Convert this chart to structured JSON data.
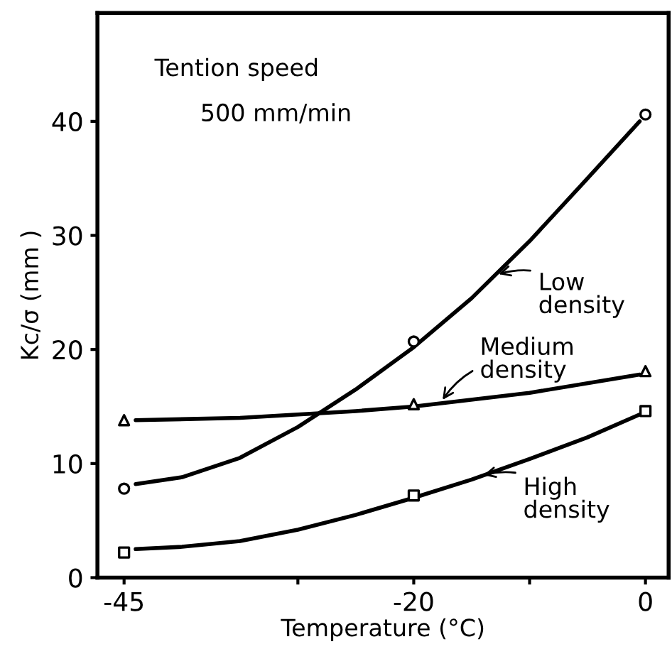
{
  "chart_data": {
    "type": "line",
    "xlabel": "Temperature (°C)",
    "ylabel": "Kc/σ (mm )",
    "series": [
      {
        "type": "scatter",
        "color": "#000000",
        "marker": "circle",
        "x": [
          -45,
          -20,
          0
        ],
        "values": [
          7.8,
          20.7,
          40.6
        ]
      },
      {
        "type": "scatter",
        "color": "#000000",
        "marker": "triangle",
        "x": [
          -45,
          -20,
          0
        ],
        "values": [
          13.8,
          15.2,
          18.1
        ]
      },
      {
        "type": "scatter",
        "color": "#000000",
        "marker": "square",
        "x": [
          -45,
          -20,
          0
        ],
        "values": [
          2.2,
          7.2,
          14.6
        ]
      },
      {
        "color": "#000000",
        "x": [
          -44,
          -40,
          -35,
          -30,
          -25,
          -20,
          -15,
          -10,
          -5,
          -0.5
        ],
        "values": [
          8.2,
          8.8,
          10.5,
          13.2,
          16.5,
          20.2,
          24.5,
          29.5,
          35,
          40
        ]
      },
      {
        "color": "#000000",
        "x": [
          -44,
          -35,
          -25,
          -20,
          -10,
          -0.5
        ],
        "values": [
          13.8,
          14.0,
          14.6,
          15.0,
          16.2,
          17.8
        ]
      },
      {
        "color": "#000000",
        "x": [
          -44,
          -40,
          -35,
          -30,
          -25,
          -20,
          -15,
          -10,
          -5,
          -0.5
        ],
        "values": [
          2.5,
          2.7,
          3.2,
          4.2,
          5.5,
          7.0,
          8.6,
          10.4,
          12.3,
          14.3
        ]
      }
    ],
    "xlim": [
      -47.3,
      2.0
    ],
    "ylim": [
      0,
      49.5
    ],
    "xticks": [
      -45,
      {
        "value": -30,
        "label": null
      },
      -20,
      {
        "value": -10,
        "label": null
      },
      0
    ],
    "yticks": [
      0,
      10,
      20,
      30,
      40
    ],
    "annotations": [
      "Tention speed",
      "500 mm/min",
      {
        "text": "Low\ndensity",
        "x": -13,
        "y": 26.5
      },
      {
        "text": "Medium\ndensity",
        "x": -17.7,
        "y": 15.3
      },
      {
        "text": "High\ndensity",
        "x": -14.3,
        "y": 8.9
      }
    ],
    "grid": false,
    "legend": false,
    "line_style": "solid"
  }
}
